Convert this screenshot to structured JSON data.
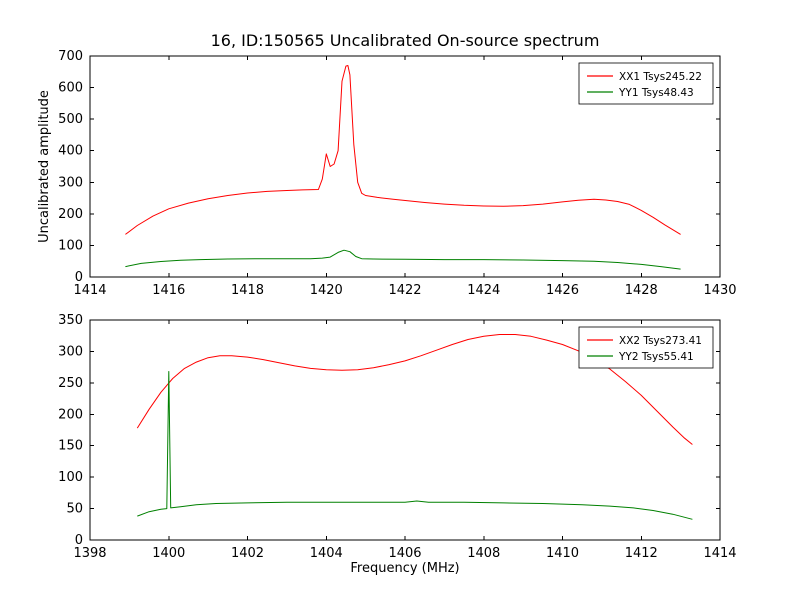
{
  "figure": {
    "background": "#ffffff",
    "frame_color": "#000000"
  },
  "chart_data": [
    {
      "type": "line",
      "title": "16, ID:150565 Uncalibrated On-source spectrum",
      "xlabel": "",
      "ylabel": "Uncalibrated amplitude",
      "xlim": [
        1414,
        1430
      ],
      "ylim": [
        0,
        700
      ],
      "xticks": [
        1414,
        1416,
        1418,
        1420,
        1422,
        1424,
        1426,
        1428,
        1430
      ],
      "yticks": [
        0,
        100,
        200,
        300,
        400,
        500,
        600,
        700
      ],
      "grid": false,
      "legend_position": "upper right",
      "series": [
        {
          "name": "XX1 Tsys245.22",
          "color": "#ff0000",
          "x": [
            1414.9,
            1415.2,
            1415.6,
            1416.0,
            1416.5,
            1417.0,
            1417.5,
            1418.0,
            1418.5,
            1419.0,
            1419.4,
            1419.8,
            1419.9,
            1420.0,
            1420.1,
            1420.2,
            1420.3,
            1420.4,
            1420.5,
            1420.55,
            1420.6,
            1420.7,
            1420.8,
            1420.9,
            1421.0,
            1421.3,
            1421.7,
            1422.1,
            1422.5,
            1423.0,
            1423.5,
            1424.0,
            1424.5,
            1425.0,
            1425.5,
            1426.0,
            1426.4,
            1426.8,
            1427.1,
            1427.4,
            1427.7,
            1428.0,
            1428.3,
            1428.6,
            1429.0
          ],
          "y": [
            135,
            163,
            193,
            216,
            234,
            248,
            258,
            266,
            271,
            274,
            276,
            277,
            310,
            390,
            350,
            358,
            400,
            620,
            668,
            670,
            640,
            420,
            300,
            265,
            258,
            252,
            246,
            241,
            236,
            231,
            227,
            225,
            224,
            226,
            231,
            238,
            243,
            246,
            244,
            239,
            230,
            211,
            189,
            165,
            135
          ]
        },
        {
          "name": "YY1 Tsys48.43",
          "color": "#008000",
          "x": [
            1414.9,
            1415.3,
            1415.8,
            1416.3,
            1416.8,
            1417.5,
            1418.2,
            1419.0,
            1419.6,
            1419.9,
            1420.1,
            1420.3,
            1420.45,
            1420.6,
            1420.75,
            1420.9,
            1421.2,
            1422.0,
            1423.0,
            1424.0,
            1425.0,
            1426.0,
            1426.8,
            1427.4,
            1428.0,
            1428.5,
            1429.0
          ],
          "y": [
            33,
            43,
            49,
            53,
            55,
            57,
            58,
            58,
            58,
            60,
            63,
            78,
            85,
            80,
            65,
            58,
            57,
            56,
            55,
            55,
            54,
            52,
            50,
            46,
            40,
            33,
            25
          ]
        }
      ]
    },
    {
      "type": "line",
      "title": "",
      "xlabel": "Frequency (MHz)",
      "ylabel": "",
      "xlim": [
        1398,
        1414
      ],
      "ylim": [
        0,
        350
      ],
      "xticks": [
        1398,
        1400,
        1402,
        1404,
        1406,
        1408,
        1410,
        1412,
        1414
      ],
      "yticks": [
        0,
        50,
        100,
        150,
        200,
        250,
        300,
        350
      ],
      "grid": false,
      "legend_position": "upper right",
      "series": [
        {
          "name": "XX2 Tsys273.41",
          "color": "#ff0000",
          "x": [
            1399.2,
            1399.5,
            1399.8,
            1400.1,
            1400.4,
            1400.7,
            1401.0,
            1401.3,
            1401.6,
            1402.0,
            1402.4,
            1402.8,
            1403.2,
            1403.6,
            1404.0,
            1404.4,
            1404.8,
            1405.2,
            1405.6,
            1406.0,
            1406.4,
            1406.8,
            1407.2,
            1407.6,
            1408.0,
            1408.4,
            1408.8,
            1409.2,
            1409.6,
            1410.0,
            1410.4,
            1410.8,
            1411.2,
            1411.6,
            1412.0,
            1412.4,
            1412.8,
            1413.1,
            1413.3
          ],
          "y": [
            178,
            208,
            235,
            257,
            273,
            283,
            290,
            293,
            293,
            291,
            287,
            282,
            277,
            273,
            271,
            270,
            271,
            274,
            279,
            285,
            293,
            302,
            311,
            319,
            324,
            327,
            327,
            324,
            318,
            311,
            301,
            288,
            272,
            252,
            230,
            205,
            180,
            162,
            152
          ]
        },
        {
          "name": "YY2 Tsys55.41",
          "color": "#008000",
          "x": [
            1399.2,
            1399.5,
            1399.8,
            1399.95,
            1400.0,
            1400.05,
            1400.3,
            1400.7,
            1401.2,
            1402.0,
            1403.0,
            1404.0,
            1405.0,
            1406.0,
            1406.3,
            1406.6,
            1407.5,
            1408.5,
            1409.5,
            1410.5,
            1411.2,
            1411.8,
            1412.3,
            1412.8,
            1413.3
          ],
          "y": [
            38,
            45,
            49,
            50,
            268,
            51,
            53,
            56,
            58,
            59,
            60,
            60,
            60,
            60,
            62,
            60,
            60,
            59,
            58,
            56,
            54,
            51,
            47,
            41,
            33
          ]
        }
      ]
    }
  ]
}
